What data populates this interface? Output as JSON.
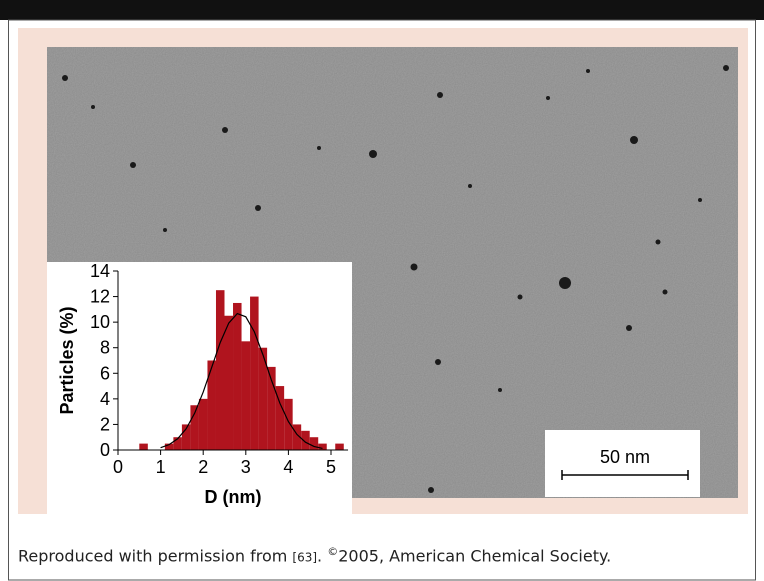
{
  "chart_data": {
    "type": "histogram",
    "x_label": "D (nm)",
    "y_label": "Particles (%)",
    "bins": [
      0.5,
      0.7,
      0.9,
      1.1,
      1.3,
      1.5,
      1.7,
      1.9,
      2.1,
      2.3,
      2.5,
      2.7,
      2.9,
      3.1,
      3.3,
      3.5,
      3.7,
      3.9,
      4.1,
      4.3,
      4.5,
      4.7,
      4.9,
      5.1,
      5.3
    ],
    "values": [
      0.5,
      0,
      0,
      0.5,
      1,
      2,
      3.5,
      4,
      7,
      12.5,
      10.5,
      11.5,
      8.5,
      12,
      8,
      6.5,
      5,
      4,
      2,
      1.5,
      1,
      0.5,
      0,
      0.5
    ],
    "color": "#b0141e",
    "fit": {
      "x": [
        1.0,
        1.2,
        1.4,
        1.6,
        1.8,
        2.0,
        2.2,
        2.4,
        2.6,
        2.8,
        3.0,
        3.2,
        3.4,
        3.6,
        3.8,
        4.0,
        4.2,
        4.4,
        4.6,
        4.8
      ],
      "values": [
        0.18,
        0.42,
        0.88,
        1.66,
        2.88,
        4.53,
        6.47,
        8.41,
        9.93,
        10.67,
        10.42,
        9.25,
        7.47,
        5.48,
        3.66,
        2.22,
        1.22,
        0.61,
        0.28,
        0.12
      ],
      "color": "#000000"
    },
    "xlim": [
      0,
      5.4
    ],
    "ylim": [
      0,
      14
    ],
    "xticks": [
      0,
      1,
      2,
      3,
      4,
      5
    ],
    "yticks": [
      0,
      2,
      4,
      6,
      8,
      10,
      12,
      14
    ]
  },
  "scale_bar": "50 nm",
  "caption": {
    "text": "Reproduced with permission from ",
    "ref": "[63]",
    "sep": ". ",
    "copyright": "©",
    "rest": "2005, American Chemical Society."
  }
}
